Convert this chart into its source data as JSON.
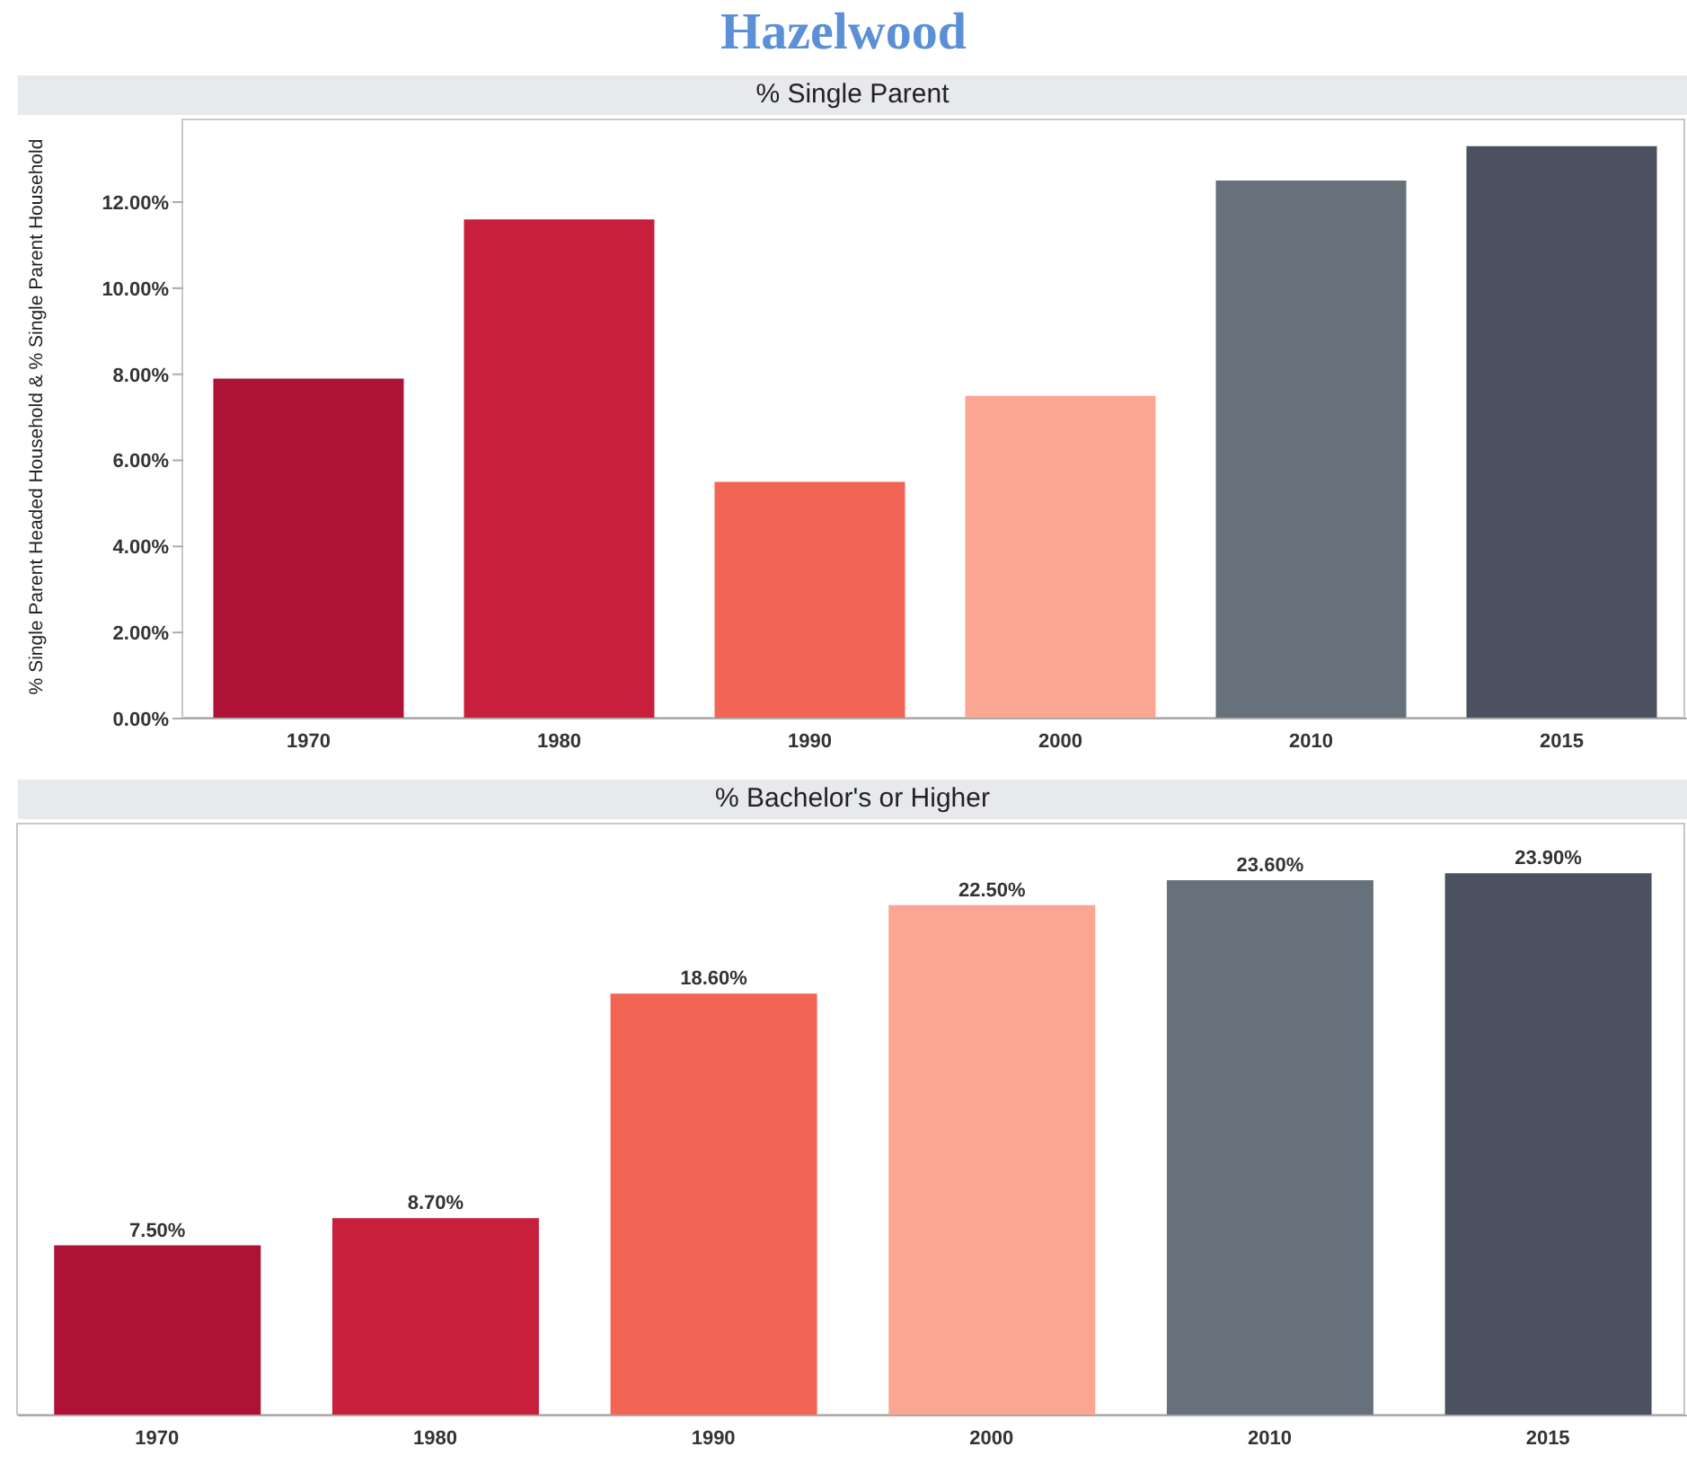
{
  "chart_data": [
    {
      "type": "bar",
      "title": "Hazelwood",
      "subtitle": "% Single Parent",
      "ylabel": "% Single Parent Headed Household & % Single Parent Household",
      "categories": [
        "1970",
        "1980",
        "1990",
        "2000",
        "2010",
        "2015"
      ],
      "values": [
        7.9,
        11.6,
        5.5,
        7.5,
        12.5,
        13.3
      ],
      "colors": [
        "#ae1236",
        "#c8203c",
        "#f26555",
        "#fba593",
        "#67717c",
        "#4b515e"
      ],
      "ylim": [
        0,
        13.9
      ],
      "yticks": [
        {
          "value": 0,
          "label": "0.00%"
        },
        {
          "value": 2,
          "label": "2.00%"
        },
        {
          "value": 4,
          "label": "4.00%"
        },
        {
          "value": 6,
          "label": "6.00%"
        },
        {
          "value": 8,
          "label": "8.00%"
        },
        {
          "value": 10,
          "label": "10.00%"
        },
        {
          "value": 12,
          "label": "12.00%"
        }
      ]
    },
    {
      "type": "bar",
      "title": "% Bachelor's or Higher",
      "categories": [
        "1970",
        "1980",
        "1990",
        "2000",
        "2010",
        "2015"
      ],
      "values": [
        7.5,
        8.7,
        18.6,
        22.5,
        23.6,
        23.9
      ],
      "colors": [
        "#ae1236",
        "#c8203c",
        "#f26555",
        "#fba593",
        "#67717c",
        "#4b515e"
      ],
      "value_labels": [
        "7.50%",
        "8.70%",
        "18.60%",
        "22.50%",
        "23.60%",
        "23.90%"
      ],
      "tick_labels": "x"
    }
  ]
}
